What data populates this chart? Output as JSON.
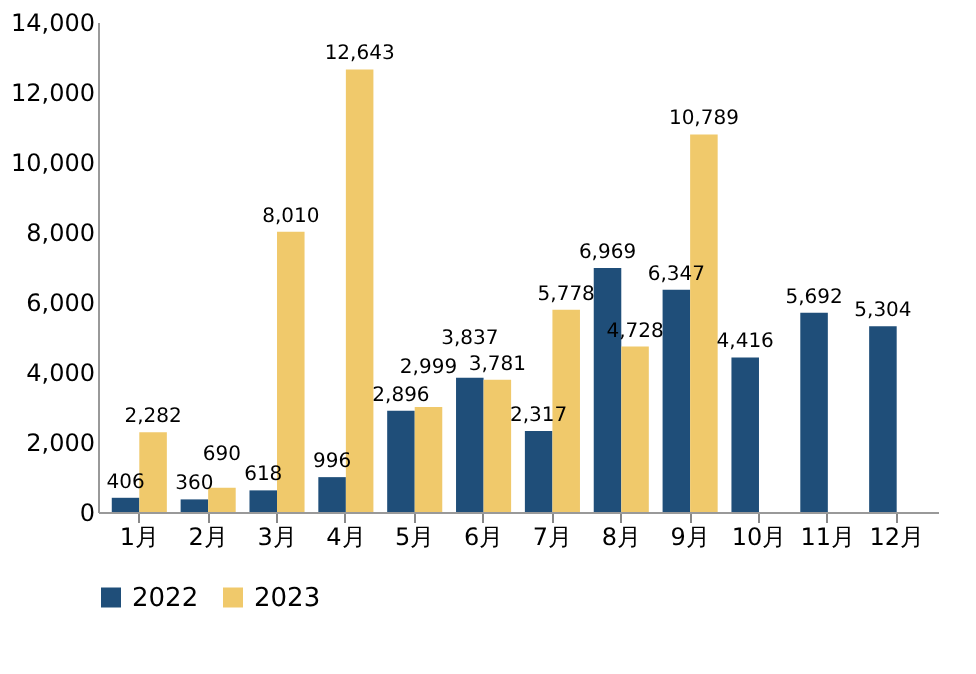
{
  "chart_data": {
    "type": "bar",
    "categories": [
      "1月",
      "2月",
      "3月",
      "4月",
      "5月",
      "6月",
      "7月",
      "8月",
      "9月",
      "10月",
      "11月",
      "12月"
    ],
    "series": [
      {
        "name": "2022",
        "color": "#1f4e79",
        "values": [
          406,
          360,
          618,
          996,
          2896,
          3837,
          2317,
          6969,
          6347,
          4416,
          5692,
          5304
        ],
        "value_labels": [
          "406",
          "360",
          "618",
          "996",
          "2,896",
          "3,837",
          "2,317",
          "6,969",
          "6,347",
          "4,416",
          "5,692",
          "5,304"
        ]
      },
      {
        "name": "2023",
        "color": "#f0c96b",
        "values": [
          2282,
          690,
          8010,
          12643,
          2999,
          3781,
          5778,
          4728,
          10789,
          null,
          null,
          null
        ],
        "value_labels": [
          "2,282",
          "690",
          "8,010",
          "12,643",
          "2,999",
          "3,781",
          "5,778",
          "4,728",
          "10,789",
          null,
          null,
          null
        ]
      }
    ],
    "ylim": [
      0,
      14000
    ],
    "yticks": [
      0,
      {
        "value": 2000,
        "label": "2,000"
      },
      {
        "value": 4000,
        "label": "4,000"
      },
      {
        "value": 6000,
        "label": "6,000"
      },
      {
        "value": 8000,
        "label": "8,000"
      },
      {
        "value": 10000,
        "label": "10,000"
      },
      {
        "value": 12000,
        "label": "12,000"
      },
      {
        "value": 14000,
        "label": "14,000"
      }
    ],
    "legend": "bottom",
    "grid": false
  }
}
